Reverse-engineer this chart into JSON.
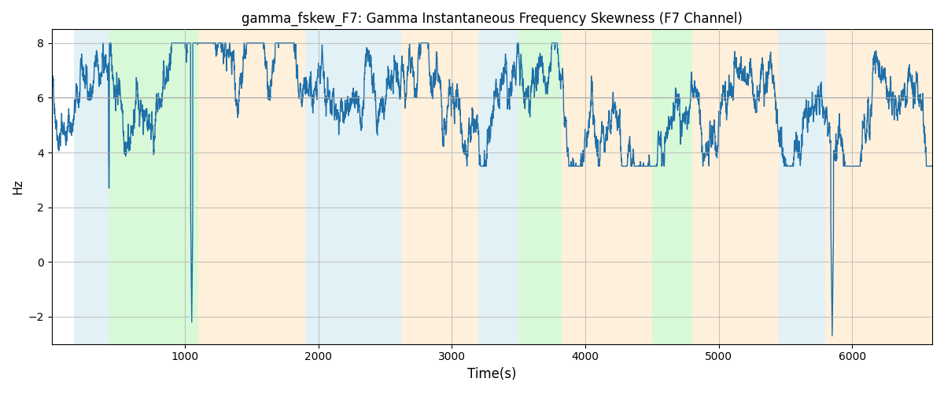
{
  "title": "gamma_fskew_F7: Gamma Instantaneous Frequency Skewness (F7 Channel)",
  "xlabel": "Time(s)",
  "ylabel": "Hz",
  "xlim": [
    0,
    6600
  ],
  "ylim": [
    -3,
    8.5
  ],
  "yticks": [
    -2,
    0,
    2,
    4,
    6,
    8
  ],
  "xticks": [
    1000,
    2000,
    3000,
    4000,
    5000,
    6000
  ],
  "background_regions": [
    {
      "xmin": 170,
      "xmax": 430,
      "color": "#add8e6",
      "alpha": 0.35
    },
    {
      "xmin": 430,
      "xmax": 1100,
      "color": "#90ee90",
      "alpha": 0.35
    },
    {
      "xmin": 1100,
      "xmax": 1900,
      "color": "#ffd59a",
      "alpha": 0.35
    },
    {
      "xmin": 1900,
      "xmax": 2620,
      "color": "#add8e6",
      "alpha": 0.35
    },
    {
      "xmin": 2620,
      "xmax": 3200,
      "color": "#ffd59a",
      "alpha": 0.35
    },
    {
      "xmin": 3200,
      "xmax": 3500,
      "color": "#add8e6",
      "alpha": 0.35
    },
    {
      "xmin": 3500,
      "xmax": 3820,
      "color": "#90ee90",
      "alpha": 0.35
    },
    {
      "xmin": 3820,
      "xmax": 4500,
      "color": "#ffd59a",
      "alpha": 0.35
    },
    {
      "xmin": 4500,
      "xmax": 4800,
      "color": "#90ee90",
      "alpha": 0.35
    },
    {
      "xmin": 4800,
      "xmax": 5450,
      "color": "#ffd59a",
      "alpha": 0.35
    },
    {
      "xmin": 5450,
      "xmax": 5800,
      "color": "#add8e6",
      "alpha": 0.35
    },
    {
      "xmin": 5800,
      "xmax": 6600,
      "color": "#ffd59a",
      "alpha": 0.35
    }
  ],
  "line_color": "#1f6fa8",
  "line_width": 1.0,
  "mean_value": 6.0,
  "seed": 42,
  "n_points": 6500,
  "figsize": [
    12,
    5
  ],
  "dpi": 100,
  "grid_color": "#b0b0b0",
  "grid_alpha": 0.7,
  "grid_linewidth": 0.8
}
